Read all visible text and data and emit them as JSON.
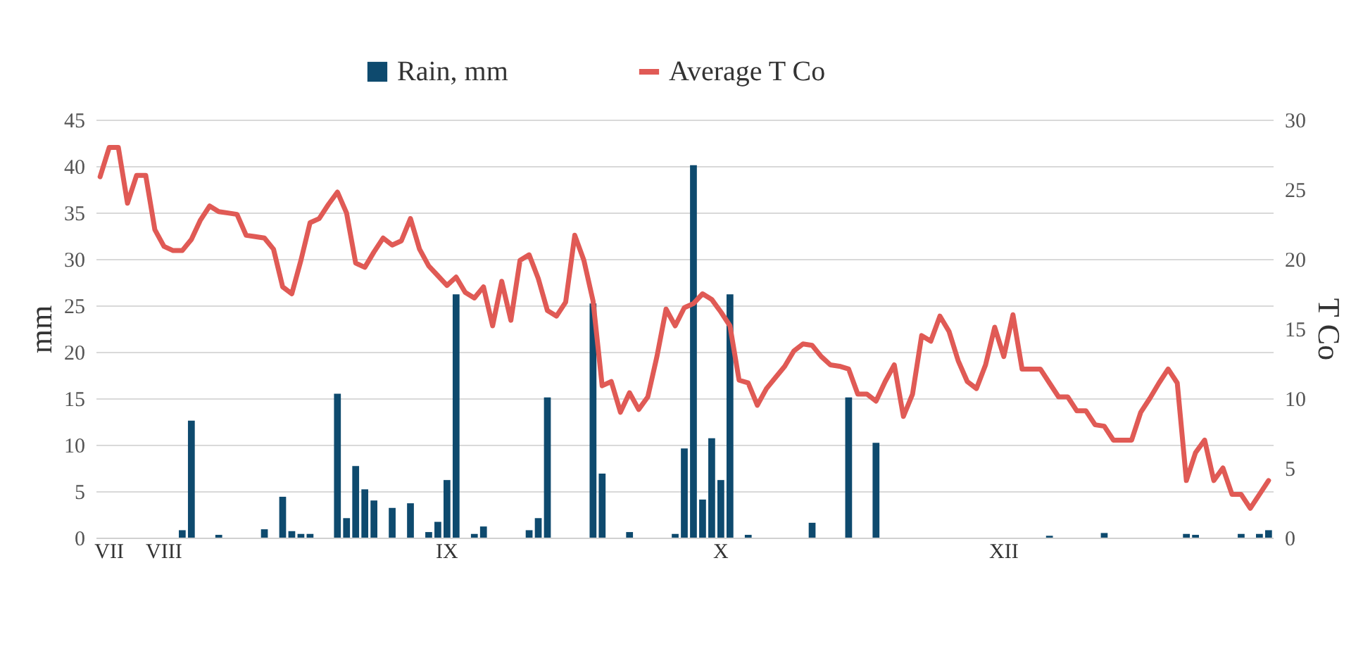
{
  "chart_data": {
    "type": "bar",
    "categories": [
      null,
      "VII",
      null,
      null,
      null,
      null,
      null,
      "VIII",
      null,
      null,
      null,
      null,
      null,
      null,
      null,
      null,
      null,
      null,
      null,
      null,
      null,
      null,
      null,
      null,
      null,
      null,
      null,
      null,
      null,
      null,
      null,
      null,
      null,
      null,
      null,
      null,
      null,
      null,
      "IX",
      null,
      null,
      null,
      null,
      null,
      null,
      null,
      null,
      null,
      null,
      null,
      null,
      null,
      null,
      null,
      null,
      null,
      null,
      null,
      null,
      null,
      null,
      null,
      null,
      null,
      null,
      null,
      null,
      null,
      "X",
      null,
      null,
      null,
      null,
      null,
      null,
      null,
      null,
      null,
      null,
      null,
      null,
      null,
      null,
      null,
      null,
      null,
      null,
      null,
      null,
      null,
      null,
      null,
      null,
      null,
      null,
      null,
      null,
      null,
      null,
      "XII",
      null,
      null,
      null,
      null,
      null,
      null,
      null,
      null,
      null,
      null,
      null,
      null,
      null,
      null,
      null,
      null,
      null,
      null,
      null,
      null,
      null,
      null,
      null,
      null,
      null,
      null,
      null,
      null,
      null
    ],
    "series": [
      {
        "name": "Rain, mm",
        "type": "bar",
        "color": "#0e4a6e",
        "values": [
          0,
          0,
          0,
          0,
          0,
          0,
          0,
          0,
          0,
          0.8,
          12.6,
          0,
          0,
          0.3,
          0,
          0,
          0,
          0,
          0.9,
          0,
          4.4,
          0.7,
          0.4,
          0.4,
          0,
          0,
          15.5,
          2.1,
          7.7,
          5.2,
          4.0,
          0,
          3.2,
          0,
          3.7,
          0,
          0.6,
          1.7,
          6.2,
          26.2,
          0,
          0.4,
          1.2,
          0,
          0,
          0,
          0,
          0.8,
          2.1,
          15.1,
          0,
          0,
          0,
          0,
          25.2,
          6.9,
          0,
          0,
          0.6,
          0,
          0,
          0,
          0,
          0.4,
          9.6,
          40.1,
          4.1,
          10.7,
          6.2,
          26.2,
          0,
          0.3,
          0,
          0,
          0,
          0,
          0,
          0,
          1.6,
          0,
          0,
          0,
          15.1,
          0,
          0,
          10.2,
          0,
          0,
          0,
          0,
          0,
          0,
          0,
          0,
          0,
          0,
          0,
          0,
          0,
          0,
          0,
          0,
          0,
          0,
          0.2,
          0,
          0,
          0,
          0,
          0,
          0.5,
          0,
          0,
          0,
          0,
          0,
          0,
          0,
          0,
          0.4,
          0.3,
          0,
          0,
          0,
          0,
          0.4,
          0,
          0.4,
          0.8
        ]
      },
      {
        "name": "Average T Co",
        "type": "line",
        "axis": "y2",
        "color": "#e05a55",
        "values": [
          25.9,
          28.0,
          28.0,
          24.0,
          26.0,
          26.0,
          22.1,
          20.9,
          20.6,
          20.6,
          21.4,
          22.8,
          23.8,
          23.4,
          23.3,
          23.2,
          21.7,
          21.6,
          21.5,
          20.7,
          18.0,
          17.5,
          19.9,
          22.6,
          22.9,
          23.9,
          24.8,
          23.3,
          19.7,
          19.4,
          20.5,
          21.5,
          21.0,
          21.3,
          22.9,
          20.7,
          19.5,
          18.8,
          18.1,
          18.7,
          17.6,
          17.2,
          18.0,
          15.2,
          18.4,
          15.6,
          19.9,
          20.3,
          18.6,
          16.3,
          15.9,
          16.9,
          21.7,
          19.9,
          17.0,
          10.9,
          11.2,
          9.0,
          10.4,
          9.2,
          10.1,
          13.0,
          16.4,
          15.2,
          16.5,
          16.8,
          17.5,
          17.1,
          16.2,
          15.2,
          11.3,
          11.1,
          9.5,
          10.7,
          11.5,
          12.3,
          13.4,
          13.9,
          13.8,
          13.0,
          12.4,
          12.3,
          12.1,
          10.3,
          10.3,
          9.8,
          11.2,
          12.4,
          8.7,
          10.3,
          14.5,
          14.1,
          15.9,
          14.8,
          12.7,
          11.2,
          10.7,
          12.4,
          15.1,
          13.0,
          16.0,
          12.1,
          12.1,
          12.1,
          11.1,
          10.1,
          10.1,
          9.1,
          9.1,
          8.1,
          8.0,
          7.0,
          7.0,
          7.0,
          9.0,
          10.0,
          11.1,
          12.1,
          11.1,
          4.1,
          6.1,
          7.0,
          4.1,
          5.0,
          3.1,
          3.1,
          2.1,
          3.1,
          4.1
        ]
      }
    ],
    "ylabel": "mm",
    "y2label": "T Co",
    "ylim": [
      0,
      45
    ],
    "yticks": [
      0,
      5,
      10,
      15,
      20,
      25,
      30,
      35,
      40,
      45
    ],
    "y2lim": [
      0,
      30
    ],
    "y2ticks": [
      0,
      5,
      10,
      15,
      20,
      25,
      30
    ],
    "grid": "y",
    "legend": "top"
  }
}
